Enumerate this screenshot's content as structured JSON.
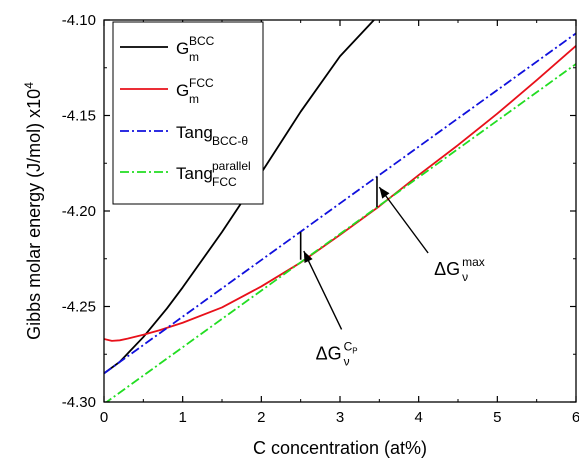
{
  "chart_data": {
    "type": "line",
    "xlabel": "C concentration (at%)",
    "ylabel": "Gibbs molar energy (J/mol) x10",
    "ylabel_exponent": "4",
    "xlim": [
      0,
      6
    ],
    "ylim": [
      -4.3,
      -4.1
    ],
    "x_ticks": [
      0,
      1,
      2,
      3,
      4,
      5,
      6
    ],
    "y_ticks": [
      -4.3,
      -4.25,
      -4.2,
      -4.15,
      -4.1
    ],
    "x_tick_labels": [
      "0",
      "1",
      "2",
      "3",
      "4",
      "5",
      "6"
    ],
    "y_tick_labels": [
      "-4.30",
      "-4.25",
      "-4.20",
      "-4.15",
      "-4.10"
    ],
    "grid": false,
    "legend_position": "top-left",
    "series": [
      {
        "legend": {
          "base": "G",
          "sub": "m",
          "sup": "BCC"
        },
        "color": "#000000",
        "dash": "solid",
        "x": [
          0,
          0.2,
          0.5,
          0.8,
          1.0,
          1.5,
          2.0,
          2.5,
          3.0,
          3.5,
          3.7
        ],
        "y": [
          -4.285,
          -4.279,
          -4.266,
          -4.251,
          -4.24,
          -4.211,
          -4.18,
          -4.148,
          -4.119,
          -4.097,
          -4.092
        ]
      },
      {
        "legend": {
          "base": "G",
          "sub": "m",
          "sup": "FCC"
        },
        "color": "#e8101a",
        "dash": "solid",
        "x": [
          0,
          0.1,
          0.2,
          0.3,
          0.5,
          0.7,
          1.0,
          1.5,
          2.0,
          2.5,
          3.0,
          3.5,
          4.0,
          4.5,
          5.0,
          5.5,
          6.0
        ],
        "y": [
          -4.267,
          -4.268,
          -4.2677,
          -4.2668,
          -4.2648,
          -4.2625,
          -4.2585,
          -4.2505,
          -4.2395,
          -4.227,
          -4.2125,
          -4.1975,
          -4.1812,
          -4.1655,
          -4.149,
          -4.1315,
          -4.1135
        ]
      },
      {
        "legend": {
          "base": "Tang",
          "sub": "BCC-θ",
          "sup": ""
        },
        "color": "#1010dd",
        "dash": "dashdot",
        "x": [
          0,
          6
        ],
        "y": [
          -4.285,
          -4.107
        ]
      },
      {
        "legend": {
          "base": "Tang",
          "sub": "FCC",
          "sup": "parallel"
        },
        "color": "#22dd22",
        "dash": "dashdot",
        "x": [
          0,
          6
        ],
        "y": [
          -4.301,
          -4.123
        ]
      }
    ],
    "markers": [
      {
        "x": 2.5,
        "y_from": -4.2255,
        "y_to": -4.211
      },
      {
        "x": 3.47,
        "y_from": -4.198,
        "y_to": -4.182
      }
    ],
    "annotations": [
      {
        "name": "cp",
        "base": "ΔG",
        "sub": "ν",
        "sup": "C",
        "sup_sub": "P",
        "at": [
          3.02,
          -4.262
        ],
        "arrow_to": [
          2.54,
          -4.221
        ]
      },
      {
        "name": "max",
        "base": "ΔG",
        "sub": "ν",
        "sup": "max",
        "sup_sub": "",
        "at": [
          4.12,
          -4.222
        ],
        "arrow_to": [
          3.5,
          -4.1875
        ]
      }
    ]
  }
}
